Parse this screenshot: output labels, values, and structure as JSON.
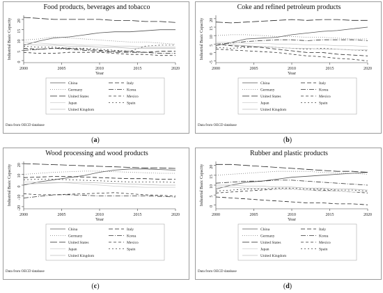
{
  "common": {
    "ylabel": "Industrial Basic Capacity",
    "xlabel": "Year",
    "source_note": "Data from OECD database",
    "x_ticks": [
      "2000",
      "2005",
      "2010",
      "2015",
      "2020"
    ],
    "legend": [
      {
        "name": "China",
        "dash": "solid",
        "color": "#555555"
      },
      {
        "name": "Italy",
        "dash": "long",
        "color": "#222222"
      },
      {
        "name": "Germany",
        "dash": "dot",
        "color": "#777777"
      },
      {
        "name": "Korea",
        "dash": "dashdot",
        "color": "#333333"
      },
      {
        "name": "United States",
        "dash": "longlong",
        "color": "#222222"
      },
      {
        "name": "Mexico",
        "dash": "dash",
        "color": "#333333"
      },
      {
        "name": "Japan",
        "dash": "solid",
        "color": "#cccccc"
      },
      {
        "name": "Spain",
        "dash": "shortdot",
        "color": "#444444"
      },
      {
        "name": "United Kingdom",
        "dash": "solid",
        "color": "#bbbbbb"
      }
    ]
  },
  "chart_data": [
    {
      "type": "line",
      "title": "Food products, beverages and tobacco",
      "label_letter": "a",
      "xlim": [
        2000,
        2020
      ],
      "ylim": [
        -1,
        22
      ],
      "yticks": [
        0,
        5,
        10,
        15,
        20
      ],
      "x": [
        2000,
        2002,
        2004,
        2006,
        2008,
        2010,
        2012,
        2014,
        2016,
        2018,
        2020
      ],
      "series": [
        {
          "name": "China",
          "values": [
            7.5,
            9.5,
            11,
            11.5,
            12.5,
            13.5,
            14,
            14,
            14.5,
            15,
            15
          ]
        },
        {
          "name": "Italy",
          "values": [
            6,
            5.5,
            6,
            6,
            5.5,
            5,
            4.5,
            4.5,
            4,
            4.5,
            4.5
          ]
        },
        {
          "name": "Germany",
          "values": [
            10,
            10.5,
            11.5,
            11,
            10.5,
            10,
            9.5,
            9,
            9,
            8.5,
            8
          ]
        },
        {
          "name": "Korea",
          "values": [
            5,
            5.5,
            6,
            5.5,
            5,
            4.5,
            4,
            4,
            4,
            3.5,
            3.5
          ]
        },
        {
          "name": "United States",
          "values": [
            21,
            20.5,
            20,
            20,
            20,
            20,
            19.5,
            19.5,
            19,
            19,
            18.5
          ]
        },
        {
          "name": "Mexico",
          "values": [
            4,
            3.5,
            3.5,
            4,
            4,
            4,
            3.5,
            3,
            3,
            2.5,
            2.5
          ]
        },
        {
          "name": "Japan",
          "values": [
            9,
            8.5,
            8,
            8,
            7.5,
            7.5,
            7,
            7,
            6.5,
            6.5,
            6.5
          ]
        },
        {
          "name": "Spain",
          "values": [
            7,
            6.5,
            6.5,
            6,
            6,
            5.5,
            5,
            4.5,
            7,
            7.5,
            7.5
          ]
        },
        {
          "name": "United Kingdom",
          "values": [
            8,
            7.5,
            7.5,
            7,
            7,
            6.5,
            6.5,
            6,
            6,
            6,
            6
          ]
        }
      ]
    },
    {
      "type": "line",
      "title": "Coke and refined petroleum products",
      "label_letter": "b",
      "xlim": [
        2000,
        2020
      ],
      "ylim": [
        -6,
        22
      ],
      "yticks": [
        -5,
        0,
        5,
        10,
        15,
        20
      ],
      "x": [
        2000,
        2002,
        2004,
        2006,
        2008,
        2010,
        2012,
        2014,
        2016,
        2018,
        2020
      ],
      "series": [
        {
          "name": "China",
          "values": [
            4,
            6,
            8,
            8.5,
            9,
            10.5,
            11.5,
            12.5,
            13,
            14,
            15
          ]
        },
        {
          "name": "Italy",
          "values": [
            5,
            4,
            3.5,
            3,
            2,
            1,
            0,
            0,
            -1,
            -1.5,
            -2
          ]
        },
        {
          "name": "Germany",
          "values": [
            10,
            10.5,
            10.5,
            10,
            9.5,
            9.5,
            9,
            9,
            8.5,
            8,
            8
          ]
        },
        {
          "name": "Korea",
          "values": [
            5,
            5.5,
            6.5,
            7,
            7.5,
            7.5,
            7,
            7.5,
            7.5,
            7.5,
            7
          ]
        },
        {
          "name": "United States",
          "values": [
            18,
            17.5,
            18,
            18.5,
            19,
            19.5,
            19,
            19.5,
            19.5,
            19,
            19
          ]
        },
        {
          "name": "Mexico",
          "values": [
            2,
            1.5,
            1,
            0.5,
            0,
            -1,
            -2,
            -2.5,
            -3.5,
            -4,
            -5
          ]
        },
        {
          "name": "Japan",
          "values": [
            6,
            6,
            5.5,
            5.5,
            5,
            5,
            4.5,
            4.5,
            4,
            4,
            3.5
          ]
        },
        {
          "name": "Spain",
          "values": [
            3,
            2.5,
            3,
            3.5,
            3,
            2.5,
            2,
            2.5,
            2,
            1.5,
            1
          ]
        },
        {
          "name": "United Kingdom",
          "values": [
            5,
            4.5,
            4,
            3.5,
            3,
            2.5,
            2.5,
            2,
            2,
            1.5,
            1.5
          ]
        }
      ]
    },
    {
      "type": "line",
      "title": "Wood processing and wood products",
      "label_letter": "c",
      "xlim": [
        2000,
        2020
      ],
      "ylim": [
        -22,
        22
      ],
      "yticks": [
        -20,
        -10,
        0,
        10,
        20
      ],
      "x": [
        2000,
        2002,
        2004,
        2006,
        2008,
        2010,
        2012,
        2014,
        2016,
        2018,
        2020
      ],
      "series": [
        {
          "name": "China",
          "values": [
            0,
            3,
            5,
            7,
            9,
            12,
            14,
            15,
            15,
            14.5,
            14
          ]
        },
        {
          "name": "Italy",
          "values": [
            7,
            7.5,
            8,
            8,
            7.5,
            7,
            6.5,
            6,
            6,
            5.5,
            5.5
          ]
        },
        {
          "name": "Germany",
          "values": [
            10,
            11,
            12,
            12.5,
            13,
            13,
            12.5,
            12,
            11.5,
            11,
            11
          ]
        },
        {
          "name": "Korea",
          "values": [
            -12,
            -10.5,
            -9,
            -9,
            -9.5,
            -10,
            -10,
            -10,
            -10,
            -10.5,
            -11
          ]
        },
        {
          "name": "United States",
          "values": [
            20,
            19.5,
            19,
            18.5,
            18,
            17.5,
            17,
            16.5,
            16,
            16,
            15.5
          ]
        },
        {
          "name": "Mexico",
          "values": [
            -8,
            -9,
            -9,
            -8.5,
            -8,
            -7.5,
            -7,
            -8,
            -9,
            -9.5,
            -10
          ]
        },
        {
          "name": "Japan",
          "values": [
            3,
            2.5,
            2.5,
            2,
            1,
            0,
            -1,
            -1.5,
            -2,
            -2,
            -2
          ]
        },
        {
          "name": "Spain",
          "values": [
            5,
            5.5,
            5.5,
            5,
            4.5,
            4,
            3.5,
            3,
            3,
            3,
            2.5
          ]
        },
        {
          "name": "United Kingdom",
          "values": [
            1,
            1.5,
            2,
            2.5,
            2.5,
            2,
            1.5,
            1,
            0.5,
            0,
            0
          ]
        }
      ]
    },
    {
      "type": "line",
      "title": "Rubber and plastic products",
      "label_letter": "d",
      "xlim": [
        2000,
        2020
      ],
      "ylim": [
        -2,
        22
      ],
      "yticks": [
        0,
        5,
        10,
        15,
        20
      ],
      "x": [
        2000,
        2002,
        2004,
        2006,
        2008,
        2010,
        2012,
        2014,
        2016,
        2018,
        2020
      ],
      "series": [
        {
          "name": "China",
          "values": [
            8,
            10,
            11.5,
            12,
            13,
            14,
            14.5,
            15,
            15.5,
            16,
            16.5
          ]
        },
        {
          "name": "Italy",
          "values": [
            4,
            3.5,
            3,
            2.5,
            2,
            1.5,
            1,
            1,
            0.5,
            0.5,
            0
          ]
        },
        {
          "name": "Germany",
          "values": [
            15,
            15.5,
            16,
            16.5,
            17,
            17,
            17,
            16.5,
            16,
            16,
            15.5
          ]
        },
        {
          "name": "Korea",
          "values": [
            11,
            11.5,
            12,
            12,
            12.5,
            12.5,
            12,
            11.5,
            11,
            10.5,
            10
          ]
        },
        {
          "name": "United States",
          "values": [
            20.5,
            20.5,
            20,
            19.5,
            19,
            18.5,
            18,
            17.5,
            17,
            17,
            16.5
          ]
        },
        {
          "name": "Mexico",
          "values": [
            6,
            6.5,
            7,
            7.5,
            8,
            8,
            7.5,
            7.5,
            7,
            6.5,
            6
          ]
        },
        {
          "name": "Japan",
          "values": [
            9,
            9,
            8.5,
            8.5,
            8,
            8,
            7.5,
            7,
            7,
            6.5,
            6.5
          ]
        },
        {
          "name": "Spain",
          "values": [
            7,
            7.5,
            8,
            8,
            8.5,
            8.5,
            8,
            8,
            7.5,
            7.5,
            7
          ]
        },
        {
          "name": "United Kingdom",
          "values": [
            10,
            10,
            9.5,
            9.5,
            9,
            9,
            8.5,
            8.5,
            8,
            8,
            7.5
          ]
        }
      ]
    }
  ]
}
